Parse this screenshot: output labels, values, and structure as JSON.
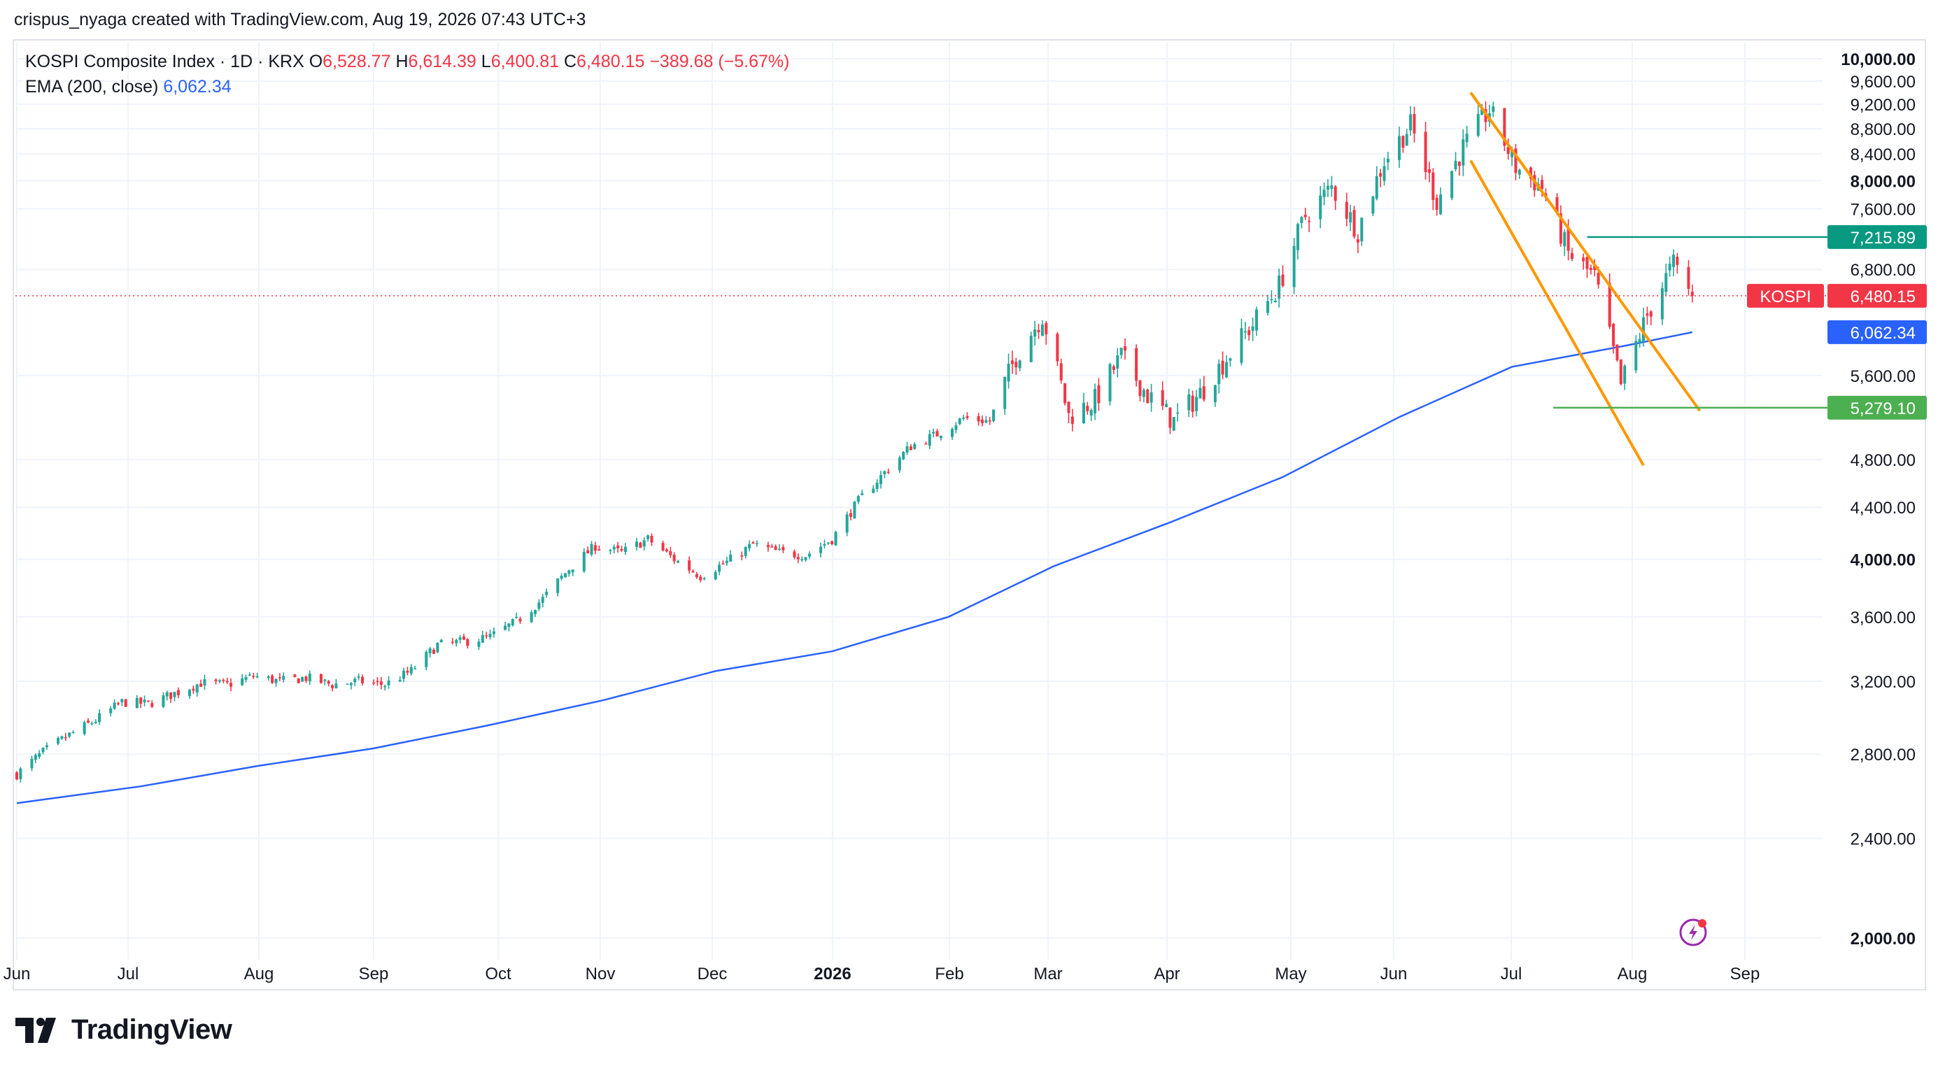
{
  "header": {
    "credit": "crispus_nyaga created with TradingView.com, Aug 19, 2026 07:43 UTC+3"
  },
  "legend": {
    "symbol": "KOSPI Composite Index · 1D · KRX",
    "open_label": "O",
    "open": "6,528.77",
    "high_label": "H",
    "high": "6,614.39",
    "low_label": "L",
    "low": "6,400.81",
    "close_label": "C",
    "close": "6,480.15",
    "change": "−389.68 (−5.67%)",
    "ema_label": "EMA (200, close)",
    "ema_value": "6,062.34"
  },
  "brand": {
    "name": "TradingView"
  },
  "colors": {
    "up": "#26a69a",
    "down": "#f23645",
    "ema": "#2962ff",
    "channel": "#ff9800",
    "resistance": "#089981",
    "support": "#4caf50",
    "grid": "#f0f3fa"
  },
  "chart_data": {
    "type": "candlestick",
    "symbol": "KOSPI",
    "price_axis": {
      "ticks": [
        "2,000.00",
        "2,400.00",
        "2,800.00",
        "3,200.00",
        "3,600.00",
        "4,000.00",
        "4,400.00",
        "4,800.00",
        "5,600.00",
        "6,800.00",
        "7,600.00",
        "8,000.00",
        "8,400.00",
        "8,800.00",
        "9,200.00",
        "9,600.00",
        "10,000.00"
      ],
      "bold_ticks": [
        "2,000.00",
        "4,000.00",
        "8,000.00",
        "10,000.00"
      ],
      "scale": "log"
    },
    "time_axis": {
      "labels": [
        "Jun",
        "Jul",
        "Aug",
        "Sep",
        "Oct",
        "Nov",
        "Dec",
        "2026",
        "Feb",
        "Mar",
        "Apr",
        "May",
        "Jun",
        "Jul",
        "Aug",
        "Sep"
      ],
      "bold_labels": [
        "2026"
      ]
    },
    "price_labels": [
      {
        "name": "resistance",
        "text": "7,215.89",
        "value": 7215.89,
        "color": "#089981"
      },
      {
        "name": "last-price",
        "prefix": "KOSPI",
        "text": "6,480.15",
        "value": 6480.15,
        "color": "#f23645"
      },
      {
        "name": "ema",
        "text": "6,062.34",
        "value": 6062.34,
        "color": "#2962ff"
      },
      {
        "name": "support",
        "text": "5,279.10",
        "value": 5279.1,
        "color": "#4caf50"
      }
    ],
    "close_series": [
      [
        "2025-05-29",
        2700
      ],
      [
        "2025-06-05",
        2810
      ],
      [
        "2025-06-12",
        2900
      ],
      [
        "2025-06-19",
        2980
      ],
      [
        "2025-06-26",
        3080
      ],
      [
        "2025-07-03",
        3070
      ],
      [
        "2025-07-10",
        3130
      ],
      [
        "2025-07-17",
        3190
      ],
      [
        "2025-07-24",
        3180
      ],
      [
        "2025-07-31",
        3230
      ],
      [
        "2025-08-07",
        3200
      ],
      [
        "2025-08-14",
        3220
      ],
      [
        "2025-08-21",
        3180
      ],
      [
        "2025-08-28",
        3200
      ],
      [
        "2025-09-04",
        3180
      ],
      [
        "2025-09-11",
        3260
      ],
      [
        "2025-09-18",
        3420
      ],
      [
        "2025-09-25",
        3440
      ],
      [
        "2025-10-02",
        3470
      ],
      [
        "2025-10-09",
        3570
      ],
      [
        "2025-10-16",
        3720
      ],
      [
        "2025-10-23",
        3930
      ],
      [
        "2025-10-30",
        4100
      ],
      [
        "2025-11-06",
        4050
      ],
      [
        "2025-11-13",
        4150
      ],
      [
        "2025-11-20",
        4000
      ],
      [
        "2025-11-27",
        3880
      ],
      [
        "2025-12-04",
        3980
      ],
      [
        "2025-12-11",
        4110
      ],
      [
        "2025-12-18",
        4050
      ],
      [
        "2025-12-25",
        4030
      ],
      [
        "2026-01-01",
        4150
      ],
      [
        "2026-01-08",
        4450
      ],
      [
        "2026-01-15",
        4690
      ],
      [
        "2026-01-22",
        4920
      ],
      [
        "2026-01-29",
        5030
      ],
      [
        "2026-02-05",
        5180
      ],
      [
        "2026-02-12",
        5150
      ],
      [
        "2026-02-19",
        5800
      ],
      [
        "2026-02-26",
        6250
      ],
      [
        "2026-03-05",
        5200
      ],
      [
        "2026-03-12",
        5350
      ],
      [
        "2026-03-19",
        5800
      ],
      [
        "2026-03-26",
        5400
      ],
      [
        "2026-04-02",
        5150
      ],
      [
        "2026-04-09",
        5420
      ],
      [
        "2026-04-16",
        5780
      ],
      [
        "2026-04-23",
        6150
      ],
      [
        "2026-04-30",
        6600
      ],
      [
        "2026-05-07",
        7500
      ],
      [
        "2026-05-14",
        7900
      ],
      [
        "2026-05-21",
        7300
      ],
      [
        "2026-05-28",
        8300
      ],
      [
        "2026-06-04",
        8850
      ],
      [
        "2026-06-11",
        7700
      ],
      [
        "2026-06-18",
        8500
      ],
      [
        "2026-06-25",
        9100
      ],
      [
        "2026-07-02",
        8200
      ],
      [
        "2026-07-09",
        7900
      ],
      [
        "2026-07-16",
        7000
      ],
      [
        "2026-07-23",
        6700
      ],
      [
        "2026-07-30",
        5500
      ],
      [
        "2026-08-06",
        6250
      ],
      [
        "2026-08-13",
        6870
      ],
      [
        "2026-08-18",
        6480
      ]
    ],
    "ema_series": [
      [
        "2025-05-29",
        2560
      ],
      [
        "2025-07-01",
        2640
      ],
      [
        "2025-08-01",
        2740
      ],
      [
        "2025-09-01",
        2830
      ],
      [
        "2025-10-01",
        2950
      ],
      [
        "2025-11-01",
        3090
      ],
      [
        "2025-12-01",
        3260
      ],
      [
        "2026-01-01",
        3380
      ],
      [
        "2026-02-01",
        3600
      ],
      [
        "2026-03-01",
        3950
      ],
      [
        "2026-04-01",
        4280
      ],
      [
        "2026-05-01",
        4650
      ],
      [
        "2026-06-01",
        5190
      ],
      [
        "2026-07-01",
        5690
      ],
      [
        "2026-08-01",
        5920
      ],
      [
        "2026-08-18",
        6062.34
      ]
    ],
    "channel": {
      "upper": [
        [
          "2026-06-20",
          9400
        ],
        [
          "2026-08-20",
          5250
        ]
      ],
      "lower": [
        [
          "2026-06-20",
          8300
        ],
        [
          "2026-08-05",
          4750
        ]
      ]
    },
    "horizontal_lines": [
      {
        "name": "resistance",
        "value": 7215.89,
        "from": "2026-07-21",
        "to": "2026-08-31"
      },
      {
        "name": "support",
        "value": 5279.1,
        "from": "2026-07-12",
        "to": "2026-08-31"
      }
    ]
  }
}
